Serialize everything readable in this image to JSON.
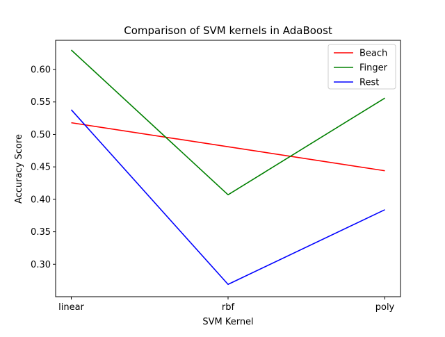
{
  "chart_data": {
    "type": "line",
    "title": "Comparison of SVM kernels in AdaBoost",
    "xlabel": "SVM Kernel",
    "ylabel": "Accuracy Score",
    "categories": [
      "linear",
      "rbf",
      "poly"
    ],
    "ylim": [
      0.25,
      0.645
    ],
    "yticks": [
      "0.30",
      "0.35",
      "0.40",
      "0.45",
      "0.50",
      "0.55",
      "0.60"
    ],
    "grid": false,
    "legend_position": "top-right",
    "series": [
      {
        "name": "Beach",
        "color": "#ff0000",
        "values": [
          0.518,
          0.481,
          0.444
        ]
      },
      {
        "name": "Finger",
        "color": "#008000",
        "values": [
          0.63,
          0.407,
          0.556
        ]
      },
      {
        "name": "Rest",
        "color": "#0000ff",
        "values": [
          0.538,
          0.269,
          0.384
        ]
      }
    ]
  }
}
